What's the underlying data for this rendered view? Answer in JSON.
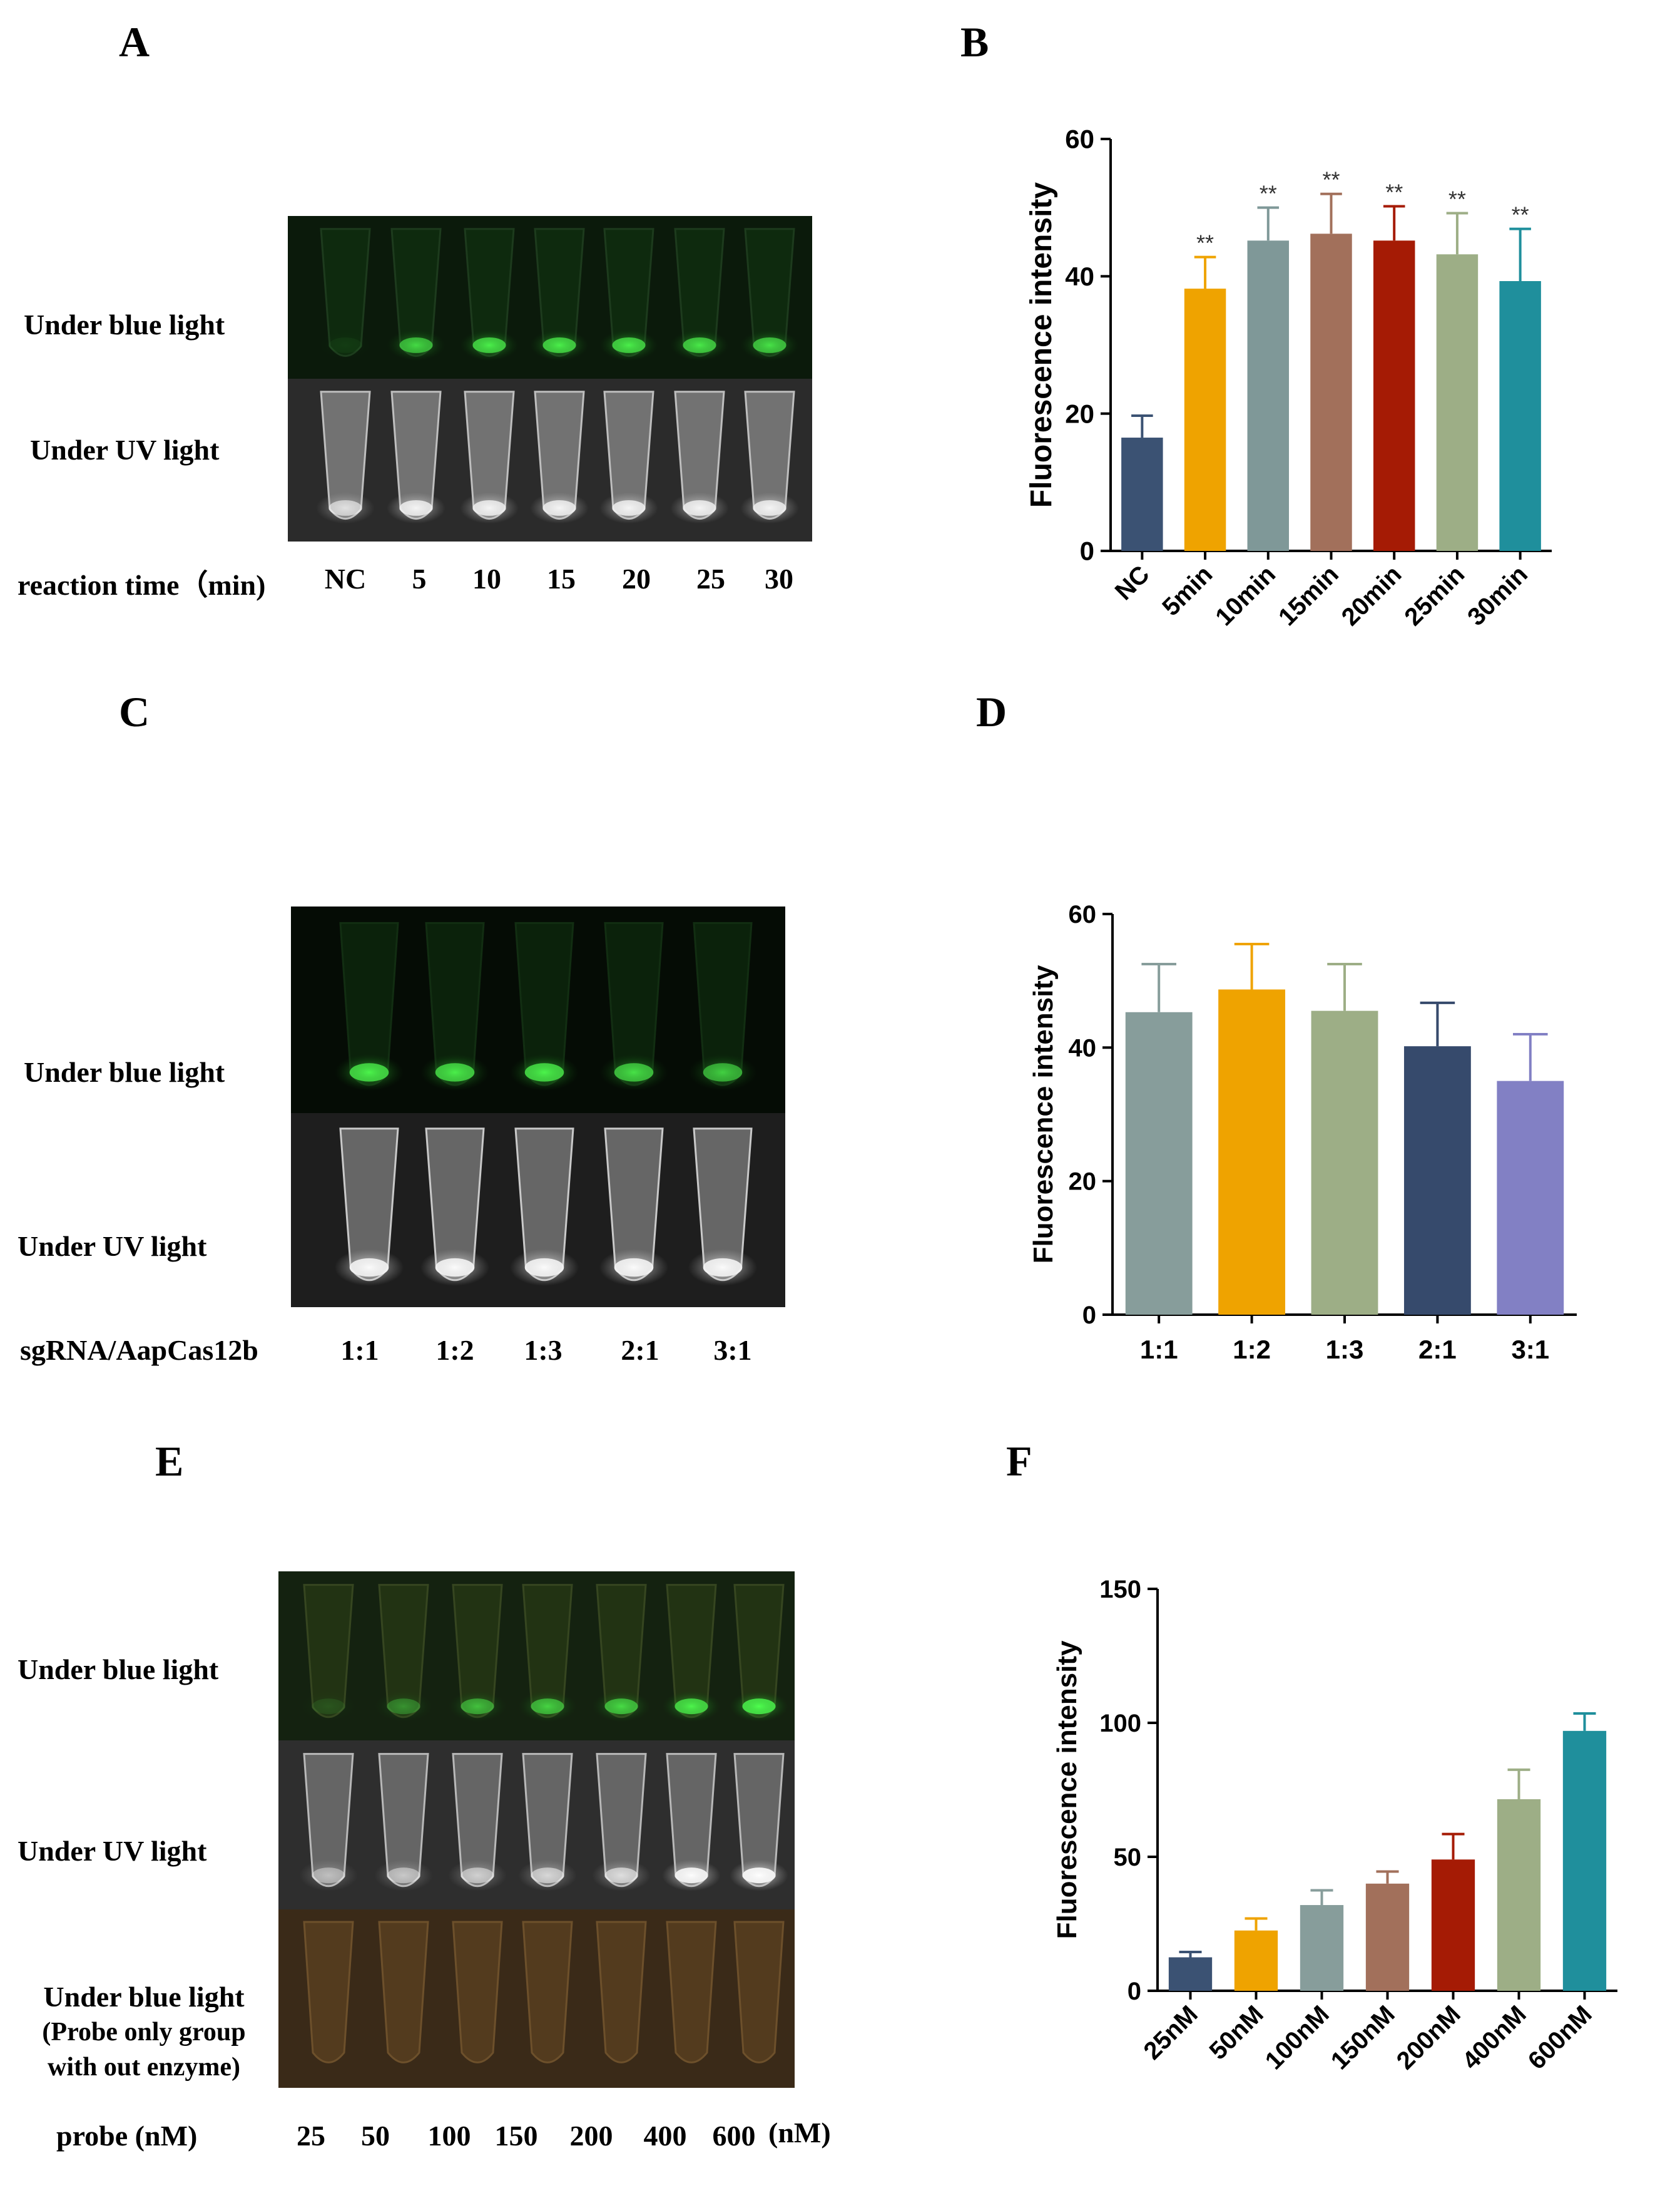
{
  "panels": {
    "A": {
      "letter": "A",
      "row1": "Under blue light",
      "row2": "Under UV light",
      "xcaption": "reaction time（min)",
      "lanes": [
        "NC",
        "5",
        "10",
        "15",
        "20",
        "25",
        "30"
      ],
      "glow_blue": [
        0.05,
        0.65,
        0.8,
        0.8,
        0.8,
        0.75,
        0.7
      ],
      "glow_uv": [
        0.6,
        0.8,
        0.8,
        0.8,
        0.8,
        0.8,
        0.8
      ]
    },
    "C": {
      "letter": "C",
      "row1": "Under blue light",
      "row2": "Under UV light",
      "xcaption": "sgRNA/AapCas12b",
      "lanes": [
        "1:1",
        "1:2",
        "1:3",
        "2:1",
        "3:1"
      ],
      "glow_blue": [
        0.85,
        0.8,
        0.85,
        0.7,
        0.6
      ],
      "glow_uv": [
        0.9,
        0.9,
        0.9,
        0.9,
        0.9
      ]
    },
    "E": {
      "letter": "E",
      "row1": "Under blue light",
      "row2": "Under UV light",
      "row3": "Under blue light",
      "row3b": "(Probe only group",
      "row3c": "with out enzyme)",
      "xcaption": "probe (nM)",
      "unit": "(nM)",
      "lanes": [
        "25",
        "50",
        "100",
        "150",
        "200",
        "400",
        "600"
      ],
      "glow_blue": [
        0.1,
        0.3,
        0.5,
        0.6,
        0.65,
        0.85,
        1.0
      ],
      "glow_uv": [
        0.4,
        0.45,
        0.5,
        0.55,
        0.6,
        0.95,
        1.0
      ]
    },
    "B": {
      "letter": "B"
    },
    "D": {
      "letter": "D"
    },
    "F": {
      "letter": "F"
    }
  },
  "chart_data": [
    {
      "id": "B",
      "type": "bar",
      "ylabel": "Fluorescence intensity",
      "ylim": [
        0,
        60
      ],
      "yticks": [
        0,
        20,
        40,
        60
      ],
      "categories": [
        "NC",
        "5min",
        "10min",
        "15min",
        "20min",
        "25min",
        "30min"
      ],
      "values": [
        16.5,
        38.2,
        45.2,
        46.2,
        45.2,
        43.2,
        39.3
      ],
      "errors": [
        3.2,
        4.6,
        4.8,
        5.8,
        5.0,
        6.0,
        7.6
      ],
      "annotations": [
        "",
        "**",
        "**",
        "**",
        "**",
        "**",
        "**"
      ],
      "colors": [
        "#3b5273",
        "#efa300",
        "#7f9898",
        "#a2705b",
        "#a51b05",
        "#9dae86",
        "#1f8f9c"
      ],
      "label_rotation": -45
    },
    {
      "id": "D",
      "type": "bar",
      "ylabel": "Fluorescence intensity",
      "ylim": [
        0,
        60
      ],
      "yticks": [
        0,
        20,
        40,
        60
      ],
      "categories": [
        "1:1",
        "1:2",
        "1:3",
        "2:1",
        "3:1"
      ],
      "values": [
        45.3,
        48.7,
        45.5,
        40.2,
        35.0
      ],
      "errors": [
        7.2,
        6.8,
        7.0,
        6.5,
        7.0
      ],
      "annotations": [
        "",
        "",
        "",
        "",
        ""
      ],
      "colors": [
        "#879d9b",
        "#efa300",
        "#9dae86",
        "#364a6c",
        "#8280c4"
      ],
      "label_rotation": 0
    },
    {
      "id": "F",
      "type": "bar",
      "ylabel": "Fluorescence intensity",
      "ylim": [
        0,
        150
      ],
      "yticks": [
        0,
        50,
        100,
        150
      ],
      "categories": [
        "25nM",
        "50nM",
        "100nM",
        "150nM",
        "200nM",
        "400nM",
        "600nM"
      ],
      "values": [
        12.5,
        22.5,
        32.0,
        40.0,
        49.0,
        71.5,
        97.0
      ],
      "errors": [
        2.0,
        4.5,
        5.5,
        4.5,
        9.5,
        11.0,
        6.5
      ],
      "annotations": [
        "",
        "",
        "",
        "",
        "",
        "",
        ""
      ],
      "colors": [
        "#3b5273",
        "#efa300",
        "#879d9b",
        "#a2705b",
        "#a51b05",
        "#9dae86",
        "#1f8f9c"
      ],
      "label_rotation": -45
    }
  ]
}
